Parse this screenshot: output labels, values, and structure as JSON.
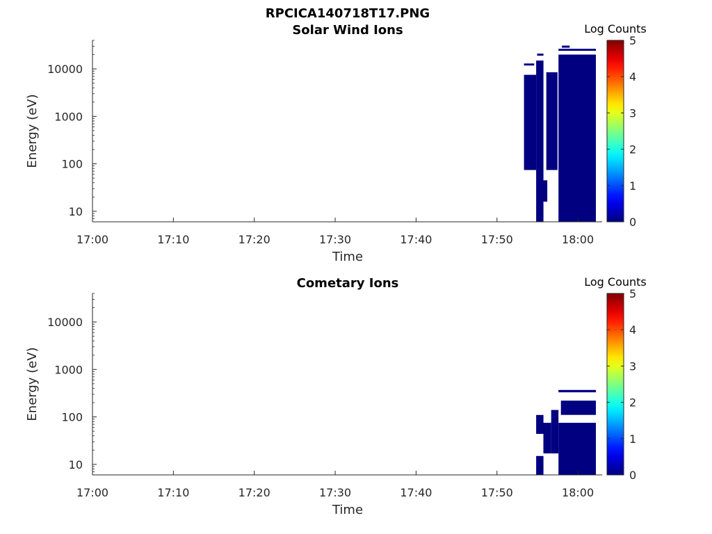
{
  "figure_title": "RPCICA140718T17.PNG",
  "colors": {
    "low": "#000080",
    "axis": "#262626",
    "background": "#ffffff"
  },
  "chart_data": [
    {
      "type": "heatmap",
      "title": "Solar Wind Ions",
      "xlabel": "Time",
      "ylabel": "Energy (eV)",
      "yscale": "log",
      "xlim": [
        "17:00",
        "18:03"
      ],
      "ylim": [
        6,
        40000
      ],
      "x_ticks": [
        "17:00",
        "17:10",
        "17:20",
        "17:30",
        "17:40",
        "17:50",
        "18:00"
      ],
      "y_ticks": [
        "10",
        "100",
        "1000",
        "10000"
      ],
      "colorbar": {
        "label": "Log Counts",
        "range": [
          0,
          5
        ],
        "ticks": [
          "0",
          "1",
          "2",
          "3",
          "4",
          "5"
        ]
      },
      "cells": [
        {
          "t0": 17.889,
          "t1": 17.914,
          "e0": 74,
          "e1": 7500,
          "value": 0
        },
        {
          "t0": 17.889,
          "t1": 17.91,
          "e0": 11800,
          "e1": 13000,
          "value": 0
        },
        {
          "t0": 17.914,
          "t1": 17.929,
          "e0": 6,
          "e1": 15000,
          "value": 0
        },
        {
          "t0": 17.916,
          "t1": 17.929,
          "e0": 19000,
          "e1": 21000,
          "value": 0
        },
        {
          "t0": 17.929,
          "t1": 17.937,
          "e0": 16,
          "e1": 45,
          "value": 0
        },
        {
          "t0": 17.935,
          "t1": 17.958,
          "e0": 74,
          "e1": 8500,
          "value": 0
        },
        {
          "t0": 17.96,
          "t1": 18.037,
          "e0": 6,
          "e1": 20000,
          "value": 0
        },
        {
          "t0": 17.96,
          "t1": 18.037,
          "e0": 24000,
          "e1": 26500,
          "value": 0
        },
        {
          "t0": 17.967,
          "t1": 17.983,
          "e0": 28000,
          "e1": 31000,
          "value": 0
        }
      ]
    },
    {
      "type": "heatmap",
      "title": "Cometary Ions",
      "xlabel": "Time",
      "ylabel": "Energy (eV)",
      "yscale": "log",
      "xlim": [
        "17:00",
        "18:03"
      ],
      "ylim": [
        6,
        40000
      ],
      "x_ticks": [
        "17:00",
        "17:10",
        "17:20",
        "17:30",
        "17:40",
        "17:50",
        "18:00"
      ],
      "y_ticks": [
        "10",
        "100",
        "1000",
        "10000"
      ],
      "colorbar": {
        "label": "Log Counts",
        "range": [
          0,
          5
        ],
        "ticks": [
          "0",
          "1",
          "2",
          "3",
          "4",
          "5"
        ]
      },
      "cells": [
        {
          "t0": 17.914,
          "t1": 17.929,
          "e0": 6,
          "e1": 15,
          "value": 0
        },
        {
          "t0": 17.914,
          "t1": 17.929,
          "e0": 44,
          "e1": 110,
          "value": 0
        },
        {
          "t0": 17.929,
          "t1": 17.945,
          "e0": 17,
          "e1": 75,
          "value": 0
        },
        {
          "t0": 17.945,
          "t1": 17.96,
          "e0": 17,
          "e1": 140,
          "value": 0
        },
        {
          "t0": 17.96,
          "t1": 18.037,
          "e0": 6,
          "e1": 75,
          "value": 0
        },
        {
          "t0": 17.965,
          "t1": 18.037,
          "e0": 110,
          "e1": 220,
          "value": 0
        },
        {
          "t0": 17.96,
          "t1": 18.037,
          "e0": 330,
          "e1": 370,
          "value": 0
        }
      ]
    }
  ]
}
